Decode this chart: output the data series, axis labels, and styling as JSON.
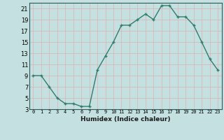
{
  "x": [
    0,
    1,
    2,
    3,
    4,
    5,
    6,
    7,
    8,
    9,
    10,
    11,
    12,
    13,
    14,
    15,
    16,
    17,
    18,
    19,
    20,
    21,
    22,
    23
  ],
  "y": [
    9,
    9,
    7,
    5,
    4,
    4,
    3.5,
    3.5,
    10,
    12.5,
    15,
    18,
    18,
    19,
    20,
    19,
    21.5,
    21.5,
    19.5,
    19.5,
    18,
    15,
    12,
    10
  ],
  "xlabel": "Humidex (Indice chaleur)",
  "ylim": [
    3,
    22
  ],
  "xlim": [
    -0.5,
    23.5
  ],
  "yticks": [
    3,
    5,
    7,
    9,
    11,
    13,
    15,
    17,
    19,
    21
  ],
  "xtick_labels": [
    "0",
    "1",
    "2",
    "3",
    "4",
    "5",
    "6",
    "7",
    "8",
    "9",
    "10",
    "11",
    "12",
    "13",
    "14",
    "15",
    "16",
    "17",
    "18",
    "19",
    "20",
    "21",
    "22",
    "23"
  ],
  "line_color": "#2e7d6e",
  "marker_color": "#2e7d6e",
  "bg_color": "#c5e0e0",
  "grid_color": "#d8b8b8"
}
